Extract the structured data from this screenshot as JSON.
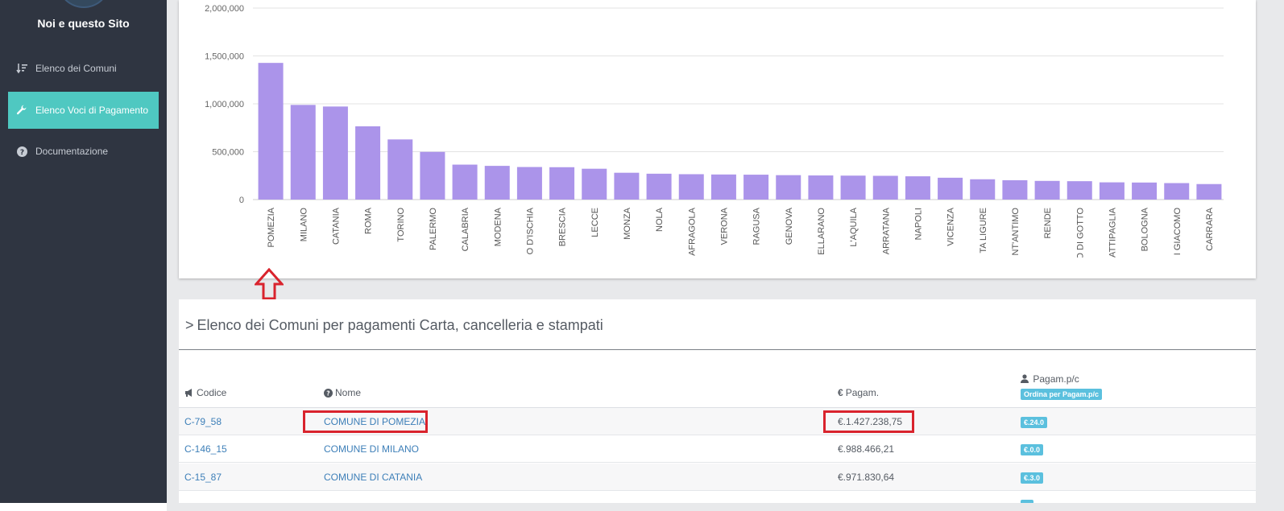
{
  "sidebar": {
    "brand": "Noi e questo Sito",
    "items": [
      {
        "label": "Elenco dei Comuni",
        "icon": "sort-amount-icon",
        "active": false
      },
      {
        "label": "Elenco Voci di Pagamento",
        "icon": "wrench-icon",
        "active": true
      },
      {
        "label": "Documentazione",
        "icon": "question-circle-icon",
        "active": false
      }
    ]
  },
  "colors": {
    "bar": "#ab94ea",
    "accent": "#4fc8c1",
    "link": "#3d7fb8",
    "badge": "#5bc0de",
    "highlight": "#d9232d"
  },
  "chart_data": {
    "type": "bar",
    "ylim": [
      0,
      2000000
    ],
    "yticks": [
      "0",
      "500,000",
      "1,000,000",
      "1,500,000",
      "2,000,000"
    ],
    "ytick_values": [
      0,
      500000,
      1000000,
      1500000,
      2000000
    ],
    "categories": [
      "POMEZIA",
      "MILANO",
      "CATANIA",
      "ROMA",
      "TORINO",
      "PALERMO",
      "CALABRIA",
      "MODENA",
      "O D'ISCHIA",
      "BRESCIA",
      "LECCE",
      "MONZA",
      "NOLA",
      "AFRAGOLA",
      "VERONA",
      "RAGUSA",
      "GENOVA",
      "ELLARANO",
      "L'AQUILA",
      "ARRATANA",
      "NAPOLI",
      "VICENZA",
      "TA LIGURE",
      "NT'ANTIMO",
      "RENDE",
      "O DI GOTTO",
      "ATTIPAGLIA",
      "BOLOGNA",
      "I GIACOMO",
      "CARRARA"
    ],
    "values": [
      1427238.75,
      988466.21,
      971830.64,
      765000,
      628000,
      498000,
      365000,
      352000,
      340000,
      338000,
      322000,
      280000,
      270000,
      265000,
      262000,
      260000,
      255000,
      252000,
      250000,
      248000,
      243000,
      228000,
      212000,
      202000,
      195000,
      192000,
      180000,
      178000,
      172000,
      162000
    ],
    "grid": true,
    "legend": "none"
  },
  "annotation": {
    "arrow": "up-arrow-icon"
  },
  "table": {
    "title_chevron": ">",
    "title": "Elenco dei Comuni per pagamenti Carta, cancelleria e stampati",
    "headers": {
      "code": "Codice",
      "name": "Nome",
      "amount": "Pagam.",
      "per_capita": "Pagam.p/c",
      "sort_label": "Ordina per Pagam.p/c"
    },
    "header_icons": {
      "code": "bullhorn-icon",
      "name": "question-circle-icon",
      "amount": "euro-icon",
      "per_capita": "user-icon"
    },
    "rows": [
      {
        "code": "C-79_58",
        "name": "COMUNE DI POMEZIA",
        "amount": "€.1.427.238,75",
        "per_capita": "€.24.0",
        "highlight": true
      },
      {
        "code": "C-146_15",
        "name": "COMUNE DI MILANO",
        "amount": "€.988.466,21",
        "per_capita": "€.0.0",
        "highlight": false
      },
      {
        "code": "C-15_87",
        "name": "COMUNE DI CATANIA",
        "amount": "€.971.830,64",
        "per_capita": "€.3.0",
        "highlight": false
      }
    ]
  }
}
